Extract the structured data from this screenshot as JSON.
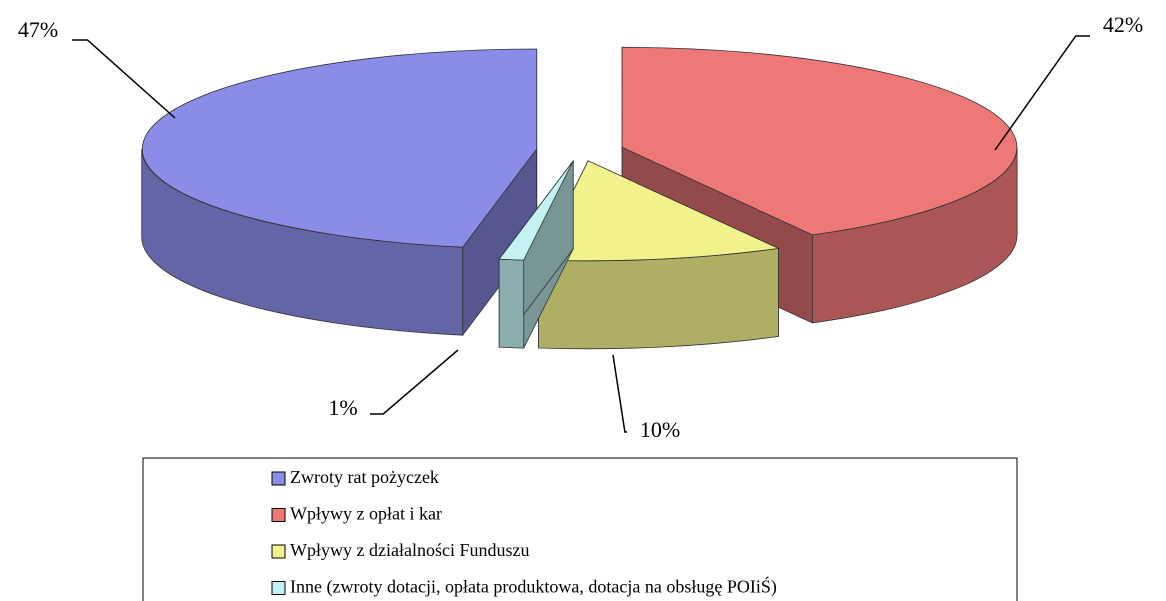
{
  "chart_data": {
    "type": "pie",
    "categories": [
      "Zwroty rat pożyczek",
      "Wpływy z opłat i kar",
      "Wpływy z działalności Funduszu",
      "Inne (zwroty dotacji, opłata produktowa, dotacja na obsługę POIiŚ)"
    ],
    "values": [
      47,
      42,
      10,
      1
    ],
    "value_labels": [
      "47%",
      "42%",
      "10%",
      "1%"
    ],
    "colors": [
      "#8b8ce8",
      "#ee7777",
      "#f2f28c",
      "#c2f2f2"
    ],
    "legend": "bottom"
  }
}
